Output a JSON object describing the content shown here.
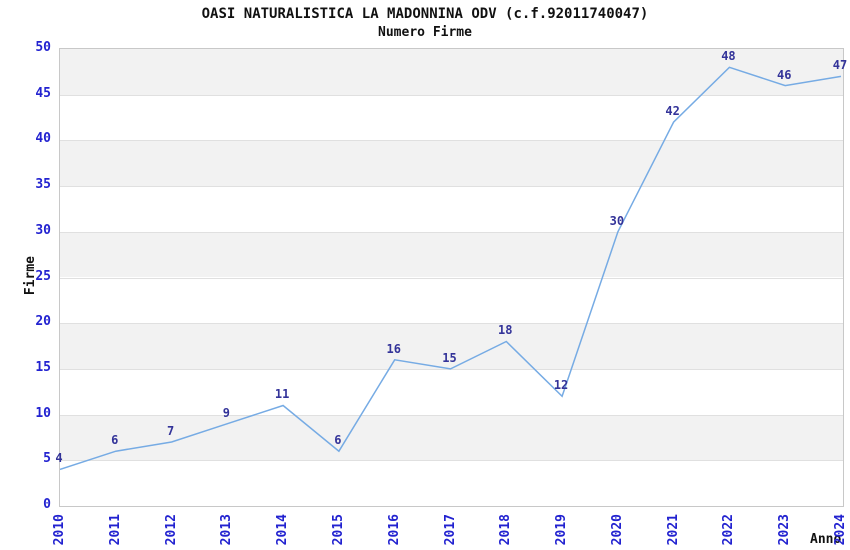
{
  "title": "OASI NATURALISTICA LA MADONNINA ODV (c.f.92011740047)",
  "subtitle": "Numero Firme",
  "chart_data": {
    "type": "line",
    "title": "OASI NATURALISTICA LA MADONNINA ODV (c.f.92011740047)",
    "subtitle": "Numero Firme",
    "xlabel": "Anno",
    "ylabel": "Firme",
    "categories": [
      "2010",
      "2011",
      "2012",
      "2013",
      "2014",
      "2015",
      "2016",
      "2017",
      "2018",
      "2019",
      "2020",
      "2021",
      "2022",
      "2023",
      "2024"
    ],
    "values": [
      4,
      6,
      7,
      9,
      11,
      6,
      16,
      15,
      18,
      12,
      30,
      42,
      48,
      46,
      47
    ],
    "ylim": [
      0,
      50
    ],
    "ytick_step": 5,
    "ytick_labels": [
      "0",
      "5",
      "10",
      "15",
      "20",
      "25",
      "30",
      "35",
      "40",
      "45",
      "50"
    ],
    "grid": "horizontal-bands-alternating",
    "legend_position": "none",
    "data_labels_visible": true,
    "colors": {
      "line": "#76abe4",
      "tick_text": "#2222d0",
      "data_label_text": "#333399",
      "band_gray": "#f2f2f2",
      "band_white": "#ffffff",
      "gridline": "#e0e0e0",
      "plot_border": "#c8c8c8",
      "text": "#111111",
      "background": "#ffffff"
    }
  }
}
